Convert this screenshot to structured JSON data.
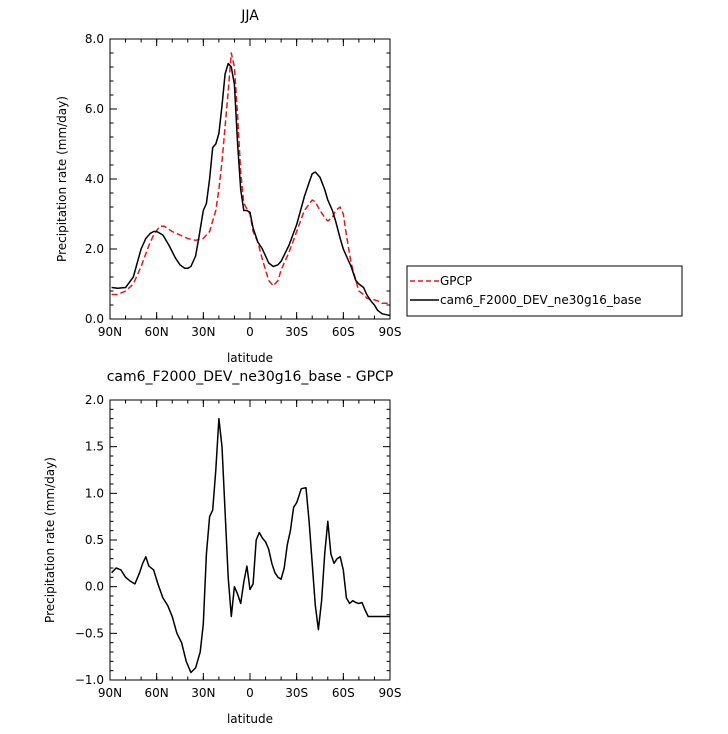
{
  "chart_data": [
    {
      "type": "line",
      "title": "JJA",
      "xlabel": "latitude",
      "ylabel": "Precipitation rate (mm/day)",
      "xlim": [
        90,
        -90
      ],
      "ylim": [
        0,
        8
      ],
      "x_ticks": [
        {
          "value": 90,
          "label": "90N"
        },
        {
          "value": 60,
          "label": "60N"
        },
        {
          "value": 30,
          "label": "30N"
        },
        {
          "value": 0,
          "label": "0"
        },
        {
          "value": -30,
          "label": "30S"
        },
        {
          "value": -60,
          "label": "60S"
        },
        {
          "value": -90,
          "label": "90S"
        }
      ],
      "y_ticks": [
        {
          "value": 0,
          "label": "0.0"
        },
        {
          "value": 2,
          "label": "2.0"
        },
        {
          "value": 4,
          "label": "4.0"
        },
        {
          "value": 6,
          "label": "6.0"
        },
        {
          "value": 8,
          "label": "8.0"
        }
      ],
      "legend_position": "right",
      "series": [
        {
          "name": "GPCP",
          "color": "#e31a1c",
          "dashed": true,
          "x": [
            89,
            85,
            80,
            75,
            70,
            65,
            62,
            58,
            55,
            50,
            45,
            40,
            35,
            30,
            28,
            26,
            24,
            22,
            20,
            18,
            16,
            14,
            12,
            10,
            8,
            6,
            4,
            2,
            0,
            -2,
            -5,
            -8,
            -12,
            -15,
            -18,
            -20,
            -25,
            -30,
            -35,
            -40,
            -42,
            -45,
            -48,
            -50,
            -53,
            -55,
            -58,
            -60,
            -62,
            -65,
            -68,
            -70,
            -73,
            -75,
            -78,
            -80,
            -83,
            -85,
            -88,
            -90
          ],
          "values": [
            0.7,
            0.7,
            0.8,
            1.0,
            1.5,
            2.1,
            2.4,
            2.65,
            2.65,
            2.5,
            2.4,
            2.3,
            2.25,
            2.3,
            2.4,
            2.5,
            2.8,
            3.1,
            3.7,
            4.5,
            5.5,
            6.5,
            7.6,
            7.2,
            5.8,
            4.2,
            3.3,
            3.15,
            3.0,
            2.5,
            2.2,
            1.7,
            1.1,
            0.95,
            1.1,
            1.4,
            1.9,
            2.5,
            3.1,
            3.4,
            3.35,
            3.1,
            2.9,
            2.8,
            2.9,
            3.1,
            3.2,
            3.0,
            2.4,
            1.6,
            1.1,
            0.8,
            0.7,
            0.6,
            0.55,
            0.55,
            0.5,
            0.45,
            0.45,
            0.5
          ]
        },
        {
          "name": "cam6_F2000_DEV_ne30g16_base",
          "color": "#000000",
          "dashed": false,
          "x": [
            89,
            85,
            80,
            75,
            70,
            67,
            64,
            62,
            60,
            56,
            52,
            48,
            45,
            42,
            40,
            38,
            35,
            33,
            30,
            28,
            26,
            24,
            22,
            20,
            18,
            16,
            14,
            12,
            10,
            8,
            6,
            4,
            2,
            0,
            -2,
            -5,
            -8,
            -12,
            -15,
            -18,
            -20,
            -25,
            -30,
            -35,
            -38,
            -40,
            -42,
            -45,
            -48,
            -50,
            -53,
            -55,
            -58,
            -60,
            -62,
            -65,
            -68,
            -70,
            -73,
            -75,
            -78,
            -80,
            -82,
            -85,
            -88,
            -90
          ],
          "values": [
            0.9,
            0.88,
            0.9,
            1.2,
            2.0,
            2.3,
            2.45,
            2.5,
            2.5,
            2.4,
            2.1,
            1.75,
            1.55,
            1.45,
            1.45,
            1.5,
            1.8,
            2.3,
            3.1,
            3.3,
            4.0,
            4.9,
            5.0,
            5.3,
            6.1,
            7.0,
            7.3,
            7.2,
            6.7,
            5.0,
            3.7,
            3.1,
            3.1,
            3.05,
            2.6,
            2.2,
            2.0,
            1.6,
            1.5,
            1.55,
            1.65,
            2.1,
            2.7,
            3.5,
            3.9,
            4.15,
            4.2,
            4.05,
            3.7,
            3.4,
            3.1,
            2.8,
            2.3,
            2.0,
            1.8,
            1.5,
            1.1,
            1.0,
            0.9,
            0.7,
            0.5,
            0.4,
            0.25,
            0.15,
            0.12,
            0.1
          ]
        }
      ]
    },
    {
      "type": "line",
      "title": "cam6_F2000_DEV_ne30g16_base - GPCP",
      "xlabel": "latitude",
      "ylabel": "Precipitation rate (mm/day)",
      "xlim": [
        90,
        -90
      ],
      "ylim": [
        -1,
        2
      ],
      "x_ticks": [
        {
          "value": 90,
          "label": "90N"
        },
        {
          "value": 60,
          "label": "60N"
        },
        {
          "value": 30,
          "label": "30N"
        },
        {
          "value": 0,
          "label": "0"
        },
        {
          "value": -30,
          "label": "30S"
        },
        {
          "value": -60,
          "label": "60S"
        },
        {
          "value": -90,
          "label": "90S"
        }
      ],
      "y_ticks": [
        {
          "value": -1,
          "label": "−1.0"
        },
        {
          "value": -0.5,
          "label": "−0.5"
        },
        {
          "value": 0,
          "label": "0.0"
        },
        {
          "value": 0.5,
          "label": "0.5"
        },
        {
          "value": 1,
          "label": "1.0"
        },
        {
          "value": 1.5,
          "label": "1.5"
        },
        {
          "value": 2,
          "label": "2.0"
        }
      ],
      "series": [
        {
          "name": "",
          "color": "#000000",
          "dashed": false,
          "x": [
            89,
            86,
            83,
            80,
            77,
            74,
            71,
            69,
            67,
            65,
            62,
            59,
            56,
            53,
            50,
            47,
            44,
            41,
            38,
            35,
            32,
            30,
            28,
            26,
            24,
            22,
            20,
            18,
            16,
            14,
            12,
            10,
            8,
            6,
            4,
            2,
            0,
            -2,
            -4,
            -6,
            -8,
            -10,
            -12,
            -14,
            -16,
            -18,
            -20,
            -22,
            -24,
            -26,
            -28,
            -30,
            -33,
            -36,
            -38,
            -40,
            -42,
            -44,
            -46,
            -48,
            -50,
            -52,
            -54,
            -56,
            -58,
            -60,
            -62,
            -64,
            -66,
            -68,
            -70,
            -72,
            -74,
            -76,
            -78,
            -80,
            -83,
            -86,
            -88,
            -90
          ],
          "values": [
            0.15,
            0.2,
            0.18,
            0.1,
            0.06,
            0.03,
            0.15,
            0.25,
            0.32,
            0.22,
            0.18,
            0.02,
            -0.12,
            -0.2,
            -0.32,
            -0.5,
            -0.6,
            -0.8,
            -0.92,
            -0.87,
            -0.7,
            -0.4,
            0.35,
            0.75,
            0.82,
            1.25,
            1.8,
            1.5,
            0.8,
            0.1,
            -0.32,
            0.0,
            -0.08,
            -0.18,
            0.05,
            0.22,
            -0.03,
            0.03,
            0.5,
            0.58,
            0.52,
            0.48,
            0.4,
            0.25,
            0.15,
            0.1,
            0.08,
            0.2,
            0.45,
            0.6,
            0.85,
            0.9,
            1.05,
            1.06,
            0.7,
            0.25,
            -0.2,
            -0.46,
            -0.15,
            0.35,
            0.7,
            0.35,
            0.25,
            0.3,
            0.32,
            0.18,
            -0.12,
            -0.18,
            -0.15,
            -0.17,
            -0.18,
            -0.17,
            -0.25,
            -0.32,
            -0.32,
            -0.32,
            -0.32,
            -0.32,
            -0.32,
            -0.32
          ]
        }
      ]
    }
  ]
}
